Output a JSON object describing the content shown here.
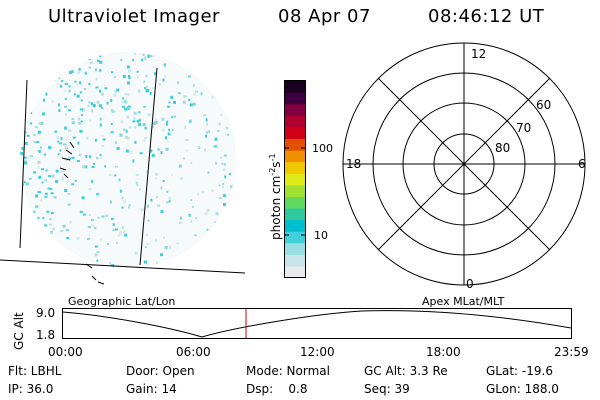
{
  "header": {
    "title": "Ultraviolet Imager",
    "date": "08 Apr 07",
    "time": "08:46:12 UT"
  },
  "colorbar": {
    "label": "photon cm^-2 s^-1",
    "label_main": "photon cm",
    "label_exp1": "-2",
    "label_mid": "s",
    "label_exp2": "-1",
    "ticks": [
      "100",
      "10"
    ],
    "colors": [
      "#e8ecec",
      "#c8e6ea",
      "#9adfe3",
      "#40d0da",
      "#00c0d0",
      "#30c8a0",
      "#60d860",
      "#a0e030",
      "#e0e818",
      "#f0c800",
      "#f09000",
      "#e05000",
      "#d00018",
      "#b00030",
      "#800040",
      "#400040",
      "#180020"
    ]
  },
  "polar_plot": {
    "mlt_labels": {
      "top": "12",
      "bottom": "0",
      "left": "18",
      "right": "6"
    },
    "lat_labels": [
      "60",
      "70",
      "80"
    ]
  },
  "left_panel_label": "Geographic Lat/Lon",
  "right_panel_label": "Apex MLat/MLT",
  "altitude_plot": {
    "ylabel": "GC Alt",
    "yticks": [
      "9.0",
      "1.8"
    ],
    "xticks": [
      "00:00",
      "06:00",
      "12:00",
      "18:00",
      "23:59"
    ],
    "marker_color": "#cc0000"
  },
  "info": {
    "row1": {
      "flt": "Flt: LBHL",
      "door": "Door: Open",
      "mode": "Mode: Normal",
      "gcalt": "GC Alt: 3.3 Re",
      "glat": "GLat: -19.6"
    },
    "row2": {
      "ip": "IP: 36.0",
      "gain": "Gain: 14",
      "dsp": "Dsp:    0.8",
      "seq": "Seq: 39",
      "glon": "GLon: 188.0"
    }
  }
}
